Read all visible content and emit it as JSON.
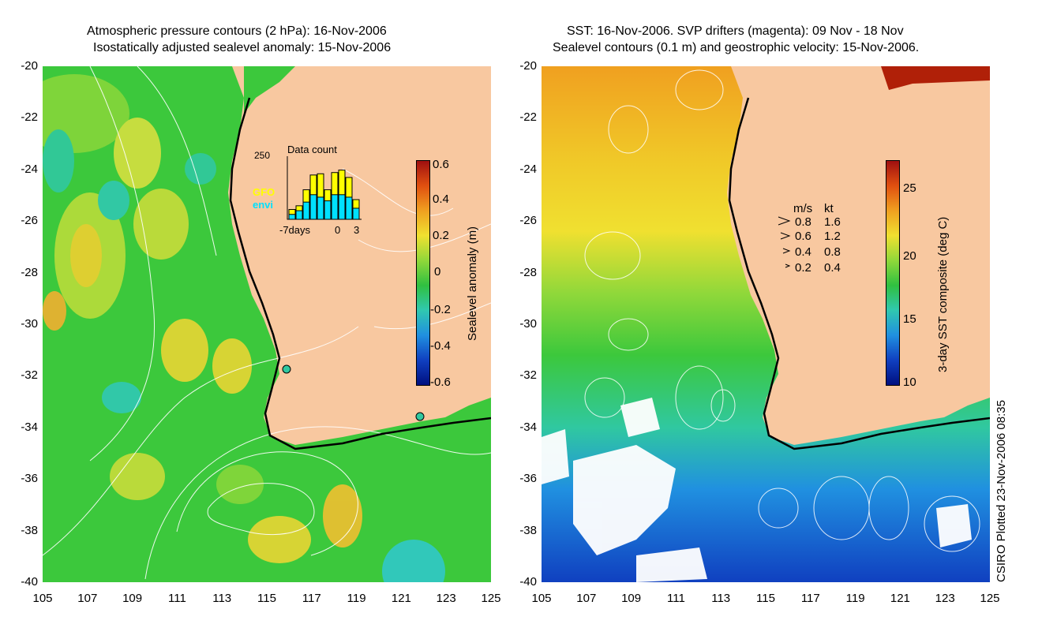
{
  "left_panel": {
    "title_line1": "Atmospheric pressure contours (2 hPa): 16-Nov-2006",
    "title_line2": "Isostatically adjusted sealevel anomaly: 15-Nov-2006",
    "colorbar": {
      "label": "Sealevel anomaly (m)",
      "ticks": [
        "0.6",
        "0.4",
        "0.2",
        "0",
        "-0.2",
        "-0.4",
        "-0.6"
      ]
    },
    "inset": {
      "title": "Data count",
      "y_max_label": "250",
      "legend": [
        {
          "label": "GFO",
          "color": "#ffff00"
        },
        {
          "label": "envi",
          "color": "#00e0ff"
        }
      ],
      "x_labels": [
        "-7days",
        "0",
        "3"
      ],
      "gfo_values": [
        40,
        55,
        120,
        180,
        185,
        120,
        190,
        200,
        170,
        80
      ],
      "envi_values": [
        20,
        35,
        70,
        100,
        90,
        75,
        100,
        100,
        90,
        45
      ]
    }
  },
  "right_panel": {
    "title_line1": "SST: 16-Nov-2006. SVP drifters (magenta): 09 Nov - 18 Nov",
    "title_line2": "Sealevel contours (0.1 m) and geostrophic velocity: 15-Nov-2006.",
    "colorbar": {
      "label": "3-day SST composite (deg C)",
      "ticks": [
        "25",
        "20",
        "15",
        "10"
      ]
    },
    "velocity_legend": {
      "header_ms": "m/s",
      "header_kt": "kt",
      "rows": [
        {
          "ms": "0.8",
          "kt": "1.6"
        },
        {
          "ms": "0.6",
          "kt": "1.2"
        },
        {
          "ms": "0.4",
          "kt": "0.8"
        },
        {
          "ms": "0.2",
          "kt": "0.4"
        }
      ]
    }
  },
  "axes": {
    "y_ticks": [
      "-20",
      "-22",
      "-24",
      "-26",
      "-28",
      "-30",
      "-32",
      "-34",
      "-36",
      "-38",
      "-40"
    ],
    "x_ticks": [
      "105",
      "107",
      "109",
      "111",
      "113",
      "115",
      "117",
      "119",
      "121",
      "123",
      "125"
    ]
  },
  "credit": "CSIRO Plotted 23-Nov-2006 08:35",
  "colors": {
    "land": "#f8c8a0",
    "ocean_green": "#3cc83c",
    "yellow": "#f0e030",
    "cyan": "#30c8c8"
  }
}
